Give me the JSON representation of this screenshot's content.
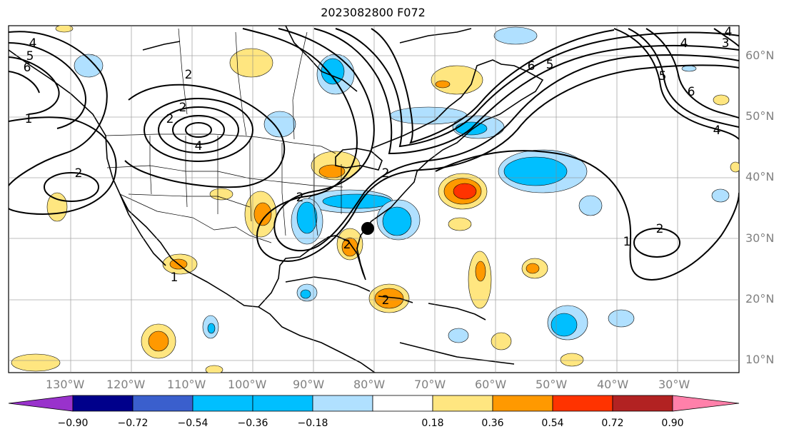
{
  "title": "2023082800 F072",
  "map": {
    "lon_labels": [
      "130°W",
      "120°W",
      "110°W",
      "100°W",
      "90°W",
      "80°W",
      "70°W",
      "60°W",
      "50°W",
      "40°W",
      "30°W"
    ],
    "lat_labels": [
      "60°N",
      "50°N",
      "40°N",
      "30°N",
      "20°N",
      "10°N"
    ],
    "contour_labels": [
      "4",
      "5",
      "6",
      "2",
      "1",
      "2",
      "2",
      "4",
      "2",
      "2",
      "2",
      "1",
      "2",
      "2",
      "6",
      "5",
      "5",
      "4",
      "6",
      "4",
      "1",
      "2",
      "3",
      "4"
    ]
  },
  "colorbar": {
    "ticks": [
      "−0.90",
      "−0.72",
      "−0.54",
      "−0.36",
      "−0.18",
      "0.18",
      "0.36",
      "0.54",
      "0.72",
      "0.90"
    ],
    "colors": [
      "#9932cc",
      "#00008b",
      "#3a5fcd",
      "#00bfff",
      "#b0e0ff",
      "#ffffff",
      "#ffe680",
      "#ff9900",
      "#ff3300",
      "#b22222",
      "#ff80aa"
    ]
  },
  "fill_colors": {
    "neg_light": "#b0e0ff",
    "neg_mid": "#00bfff",
    "pos_light": "#ffe680",
    "pos_mid": "#ff9900",
    "pos_strong": "#ff3300"
  }
}
